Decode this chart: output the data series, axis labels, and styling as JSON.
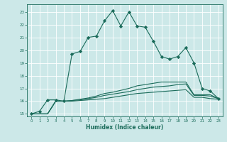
{
  "xlabel": "Humidex (Indice chaleur)",
  "ylabel": "",
  "background_color": "#cce8e8",
  "grid_color": "#b0d8d8",
  "line_color": "#1a6b5a",
  "xlim": [
    -0.5,
    23.5
  ],
  "ylim": [
    14.8,
    23.6
  ],
  "yticks": [
    15,
    16,
    17,
    18,
    19,
    20,
    21,
    22,
    23
  ],
  "xticks": [
    0,
    1,
    2,
    3,
    4,
    5,
    6,
    7,
    8,
    9,
    10,
    11,
    12,
    13,
    14,
    15,
    16,
    17,
    18,
    19,
    20,
    21,
    22,
    23
  ],
  "series": [
    {
      "x": [
        0,
        1,
        2,
        3,
        4,
        5,
        6,
        7,
        8,
        9,
        10,
        11,
        12,
        13,
        14,
        15,
        16,
        17,
        18,
        19,
        20,
        21,
        22,
        23
      ],
      "y": [
        15.0,
        15.2,
        16.1,
        16.1,
        16.0,
        19.7,
        19.9,
        21.0,
        21.1,
        22.3,
        23.1,
        21.9,
        23.0,
        21.9,
        21.8,
        20.7,
        19.5,
        19.3,
        19.5,
        20.2,
        19.0,
        17.0,
        16.8,
        16.2
      ],
      "marker": "D",
      "markersize": 2.2,
      "linewidth": 0.8
    },
    {
      "x": [
        0,
        1,
        2,
        3,
        4,
        5,
        6,
        7,
        8,
        9,
        10,
        11,
        12,
        13,
        14,
        15,
        16,
        17,
        18,
        19,
        20,
        21,
        22,
        23
      ],
      "y": [
        15.0,
        15.0,
        15.0,
        16.0,
        16.0,
        16.0,
        16.05,
        16.1,
        16.15,
        16.2,
        16.3,
        16.4,
        16.5,
        16.6,
        16.65,
        16.7,
        16.75,
        16.8,
        16.85,
        16.9,
        16.3,
        16.3,
        16.2,
        16.15
      ],
      "marker": null,
      "markersize": 0,
      "linewidth": 0.8
    },
    {
      "x": [
        0,
        1,
        2,
        3,
        4,
        5,
        6,
        7,
        8,
        9,
        10,
        11,
        12,
        13,
        14,
        15,
        16,
        17,
        18,
        19,
        20,
        21,
        22,
        23
      ],
      "y": [
        15.0,
        15.0,
        15.0,
        16.0,
        16.0,
        16.05,
        16.1,
        16.2,
        16.3,
        16.45,
        16.55,
        16.65,
        16.75,
        16.9,
        17.0,
        17.1,
        17.15,
        17.2,
        17.3,
        17.35,
        16.45,
        16.45,
        16.4,
        16.2
      ],
      "marker": null,
      "markersize": 0,
      "linewidth": 0.8
    },
    {
      "x": [
        0,
        1,
        2,
        3,
        4,
        5,
        6,
        7,
        8,
        9,
        10,
        11,
        12,
        13,
        14,
        15,
        16,
        17,
        18,
        19,
        20,
        21,
        22,
        23
      ],
      "y": [
        15.0,
        15.0,
        15.0,
        16.0,
        16.0,
        16.05,
        16.15,
        16.25,
        16.4,
        16.6,
        16.7,
        16.85,
        17.0,
        17.2,
        17.3,
        17.4,
        17.5,
        17.5,
        17.5,
        17.5,
        16.5,
        16.5,
        16.5,
        16.2
      ],
      "marker": null,
      "markersize": 0,
      "linewidth": 0.8
    }
  ]
}
